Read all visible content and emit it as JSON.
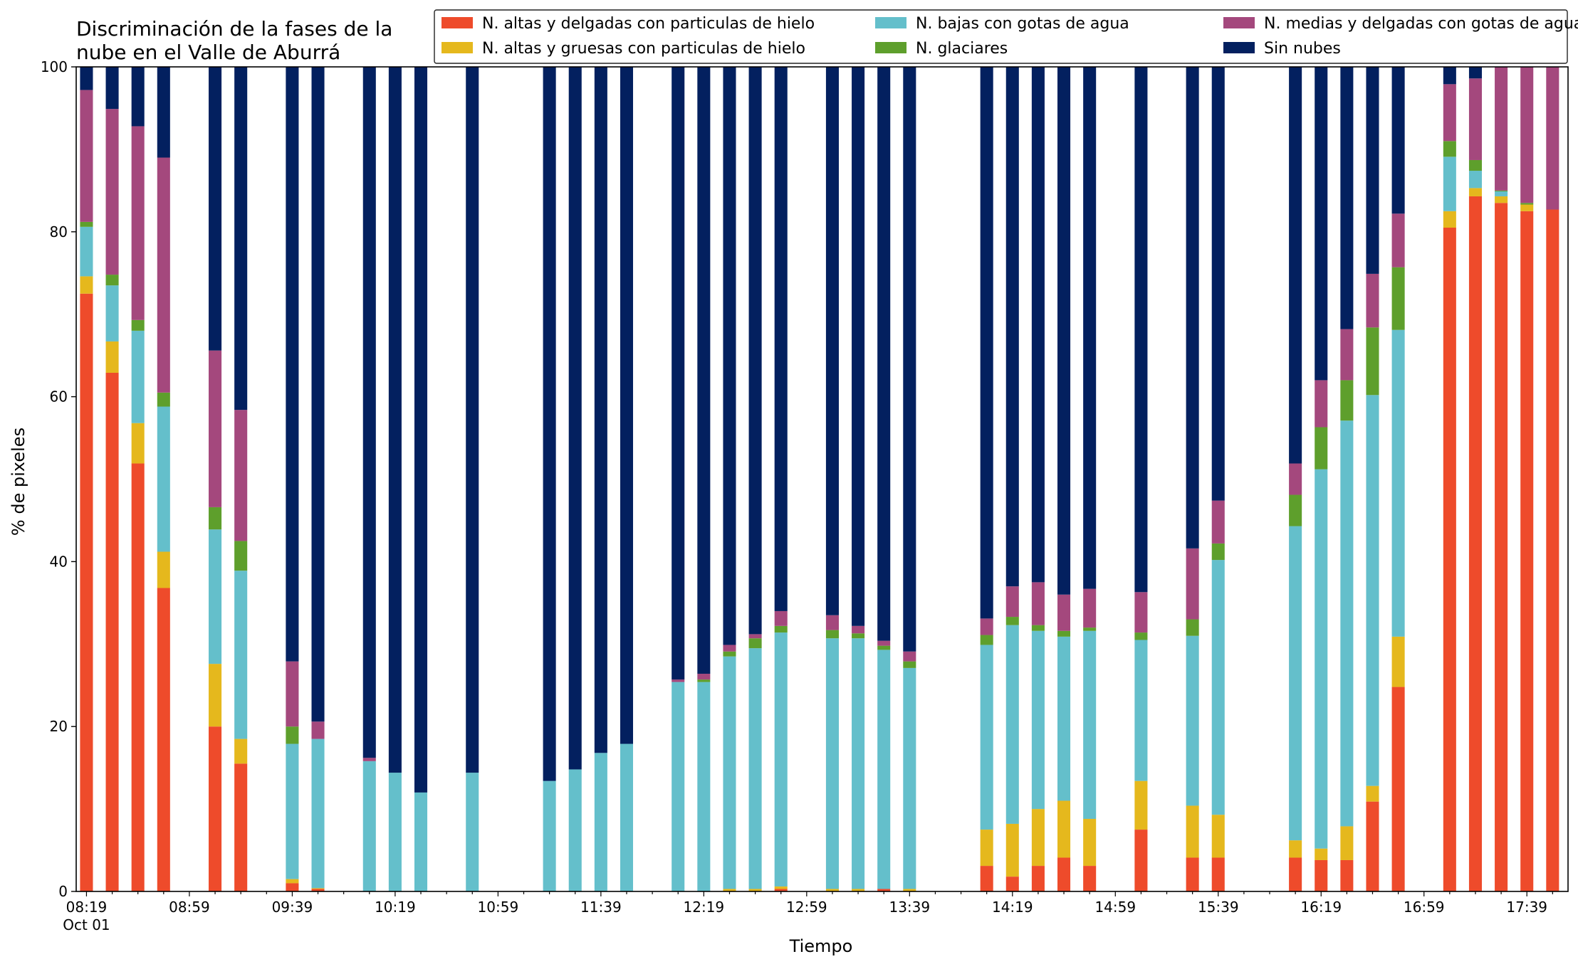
{
  "chart_data": {
    "type": "bar",
    "stacked": true,
    "title_lines": [
      "Discriminación de la fases de la",
      "nube en el Valle de Aburrá"
    ],
    "xlabel": "Tiempo",
    "ylabel": "% de pixeles",
    "ylim": [
      0,
      100
    ],
    "yticks": [
      0,
      20,
      40,
      60,
      80,
      100
    ],
    "grid": false,
    "legend_position": "top-right",
    "x_time_range": [
      "08:15",
      "17:55"
    ],
    "x_tick_labels": [
      "08:19",
      "08:59",
      "09:39",
      "10:19",
      "10:59",
      "11:39",
      "12:19",
      "12:59",
      "13:39",
      "14:19",
      "14:59",
      "15:39",
      "16:19",
      "16:59",
      "17:39"
    ],
    "x_tick_sublabel": "Oct 01",
    "times": [
      "08:19",
      "08:29",
      "08:39",
      "08:49",
      "09:09",
      "09:19",
      "09:39",
      "09:49",
      "10:09",
      "10:19",
      "10:29",
      "10:49",
      "11:19",
      "11:29",
      "11:39",
      "11:49",
      "12:09",
      "12:19",
      "12:29",
      "12:39",
      "12:49",
      "13:09",
      "13:19",
      "13:29",
      "13:39",
      "14:09",
      "14:19",
      "14:29",
      "14:39",
      "14:49",
      "15:09",
      "15:29",
      "15:39",
      "16:09",
      "16:19",
      "16:29",
      "16:39",
      "16:49",
      "17:09",
      "17:19",
      "17:29",
      "17:39",
      "17:49"
    ],
    "series": [
      {
        "name": "N. altas y delgadas con particulas de hielo",
        "color": "#ee4b2b",
        "values": [
          72.5,
          62.9,
          51.9,
          36.8,
          20.0,
          15.5,
          1.0,
          0.3,
          0,
          0,
          0,
          0,
          0,
          0,
          0,
          0,
          0,
          0,
          0,
          0,
          0.3,
          0,
          0,
          0.3,
          0,
          3.1,
          1.8,
          3.1,
          4.1,
          3.1,
          7.5,
          4.1,
          4.1,
          4.1,
          3.8,
          3.8,
          10.9,
          24.8,
          80.5,
          84.3,
          83.5,
          82.5,
          82.7
        ]
      },
      {
        "name": "N. altas y gruesas con particulas de hielo",
        "color": "#e5b81d",
        "values": [
          2.1,
          3.8,
          4.9,
          4.4,
          7.6,
          3.0,
          0.5,
          0.1,
          0,
          0,
          0,
          0,
          0,
          0,
          0,
          0,
          0,
          0,
          0.3,
          0.3,
          0.3,
          0.3,
          0.3,
          0,
          0.3,
          4.4,
          6.4,
          6.9,
          6.9,
          5.7,
          5.9,
          6.3,
          5.2,
          2.1,
          1.4,
          4.1,
          1.9,
          6.1,
          2.0,
          1.0,
          0.8,
          0.8,
          0
        ]
      },
      {
        "name": "N. bajas con gotas de agua",
        "color": "#64bfcb",
        "values": [
          6.0,
          6.8,
          11.2,
          17.6,
          16.3,
          20.4,
          16.4,
          18.1,
          15.8,
          14.4,
          12.0,
          14.4,
          13.4,
          14.8,
          16.8,
          17.9,
          25.4,
          25.4,
          28.2,
          29.2,
          30.8,
          30.4,
          30.4,
          29.0,
          26.8,
          22.4,
          24.1,
          21.6,
          19.9,
          22.8,
          17.1,
          20.6,
          30.9,
          38.1,
          46.0,
          49.2,
          47.4,
          37.2,
          6.6,
          2.1,
          0.6,
          0,
          0
        ]
      },
      {
        "name": "N. glaciares",
        "color": "#5e9f2c",
        "values": [
          0.6,
          1.3,
          1.3,
          1.7,
          2.7,
          3.6,
          2.1,
          0,
          0,
          0,
          0,
          0,
          0,
          0,
          0,
          0,
          0,
          0.3,
          0.6,
          1.2,
          0.8,
          1.0,
          0.6,
          0.5,
          0.8,
          1.2,
          1.0,
          0.7,
          0.7,
          0.4,
          0.9,
          2.0,
          2.0,
          3.8,
          5.1,
          4.9,
          8.2,
          7.6,
          1.9,
          1.3,
          0.1,
          0.2,
          0
        ]
      },
      {
        "name": "N. medias y delgadas con gotas de agua",
        "color": "#a4487d",
        "values": [
          16.0,
          20.1,
          23.5,
          28.5,
          19.0,
          15.9,
          7.9,
          2.1,
          0.4,
          0,
          0,
          0,
          0,
          0,
          0,
          0,
          0.3,
          0.7,
          0.8,
          0.5,
          1.8,
          1.8,
          0.9,
          0.6,
          1.2,
          2.0,
          3.7,
          5.2,
          4.4,
          4.7,
          4.9,
          8.6,
          5.2,
          3.8,
          5.7,
          6.2,
          6.5,
          6.5,
          6.9,
          9.9,
          15.0,
          16.5,
          17.3
        ]
      },
      {
        "name": "Sin nubes",
        "color": "#03205f",
        "values": [
          2.8,
          5.1,
          7.2,
          11.0,
          34.4,
          41.6,
          72.1,
          79.4,
          83.8,
          85.6,
          88.0,
          85.6,
          86.6,
          85.2,
          83.2,
          82.1,
          74.3,
          73.6,
          70.1,
          68.8,
          66.0,
          66.5,
          67.8,
          69.6,
          70.9,
          66.9,
          63.0,
          62.5,
          64.0,
          63.3,
          63.7,
          58.4,
          52.6,
          48.1,
          38.0,
          31.8,
          25.1,
          17.8,
          2.1,
          1.4,
          0,
          0,
          0
        ]
      }
    ]
  }
}
